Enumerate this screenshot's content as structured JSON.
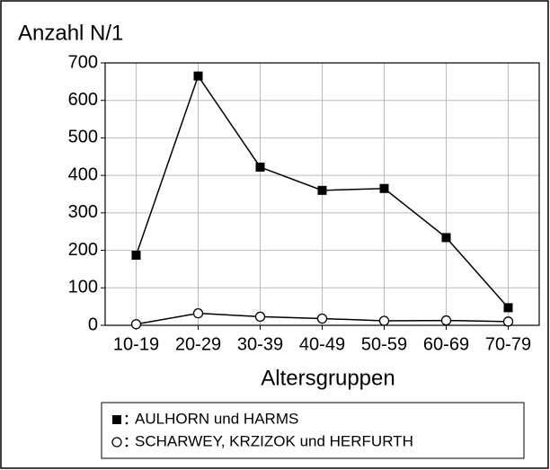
{
  "chart_data": {
    "type": "line",
    "title": "Anzahl N/1",
    "x_label": "Altersgruppen",
    "categories": [
      "10-19",
      "20-29",
      "30-39",
      "40-49",
      "50-59",
      "60-69",
      "70-79"
    ],
    "series": [
      {
        "name": "AULHORN und HARMS",
        "color": "#000000",
        "marker": "square",
        "values": [
          187,
          665,
          422,
          360,
          365,
          234,
          47
        ]
      },
      {
        "name": "SCHARWEY, KRZIZOK und HERFURTH",
        "color": "#000000",
        "marker": "circle",
        "values": [
          3,
          32,
          23,
          18,
          12,
          13,
          10
        ]
      }
    ],
    "ylim": [
      0,
      700
    ],
    "yticks": [
      0,
      100,
      200,
      300,
      400,
      500,
      600,
      700
    ],
    "grid": true
  }
}
